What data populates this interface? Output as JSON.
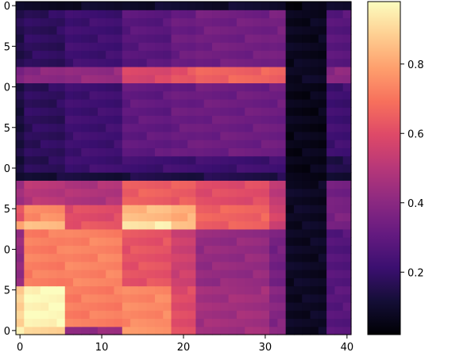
{
  "chart_data": {
    "type": "heatmap",
    "colormap": "magma",
    "x_ticks": [
      "0",
      "10",
      "20",
      "30",
      "40"
    ],
    "y_ticks": [
      "0",
      "5",
      "0",
      "5",
      "0",
      "5",
      "0",
      "5",
      "0"
    ],
    "xlim": [
      -0.5,
      40.5
    ],
    "ylim": [
      0,
      41
    ],
    "colorbar": {
      "ticks": [
        "0.2",
        "0.4",
        "0.6",
        "0.8"
      ],
      "tick_values": [
        0.2,
        0.4,
        0.6,
        0.8
      ],
      "range": [
        0.02,
        0.98
      ]
    },
    "grid": false,
    "block_bounds": [
      0,
      1,
      6,
      13,
      19,
      22,
      31,
      33,
      38,
      41
    ],
    "block_values": [
      [
        0.98,
        0.88,
        0.42,
        0.78,
        0.6,
        0.45,
        0.4,
        0.08,
        0.28,
        0.03
      ],
      [
        0.88,
        0.97,
        0.72,
        0.74,
        0.6,
        0.45,
        0.38,
        0.08,
        0.28,
        0.03
      ],
      [
        0.42,
        0.72,
        0.73,
        0.62,
        0.55,
        0.42,
        0.35,
        0.08,
        0.27,
        0.03
      ],
      [
        0.78,
        0.85,
        0.62,
        0.94,
        0.85,
        0.65,
        0.55,
        0.08,
        0.35,
        0.03
      ],
      [
        0.62,
        0.75,
        0.6,
        0.84,
        0.82,
        0.66,
        0.57,
        0.08,
        0.36,
        0.03
      ],
      [
        0.45,
        0.5,
        0.48,
        0.65,
        0.64,
        0.6,
        0.52,
        0.08,
        0.34,
        0.03
      ],
      [
        0.1,
        0.12,
        0.12,
        0.14,
        0.14,
        0.15,
        0.15,
        0.05,
        0.12,
        0.03
      ],
      [
        0.11,
        0.17,
        0.22,
        0.22,
        0.22,
        0.22,
        0.22,
        0.06,
        0.15,
        0.03
      ],
      [
        0.13,
        0.18,
        0.22,
        0.3,
        0.32,
        0.33,
        0.33,
        0.06,
        0.22,
        0.03
      ],
      [
        0.36,
        0.4,
        0.42,
        0.58,
        0.62,
        0.66,
        0.65,
        0.08,
        0.4,
        0.03
      ],
      [
        0.15,
        0.18,
        0.22,
        0.28,
        0.32,
        0.34,
        0.35,
        0.07,
        0.28,
        0.03
      ],
      [
        0.08,
        0.08,
        0.09,
        0.1,
        0.1,
        0.1,
        0.1,
        0.05,
        0.1,
        0.03
      ]
    ],
    "row_bounds": [
      0,
      1,
      6,
      13,
      14,
      16,
      19,
      20,
      22,
      31,
      33,
      40,
      41
    ]
  }
}
